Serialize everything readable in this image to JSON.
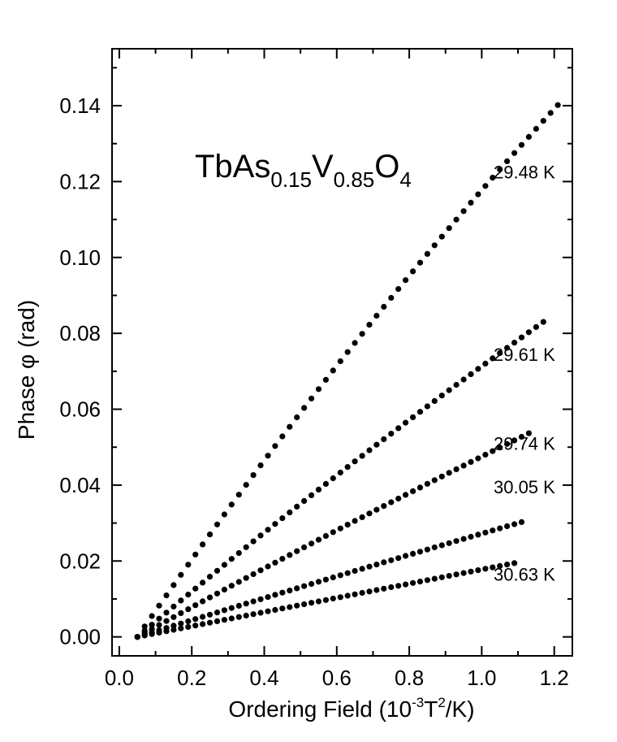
{
  "chart_data": {
    "type": "scatter",
    "title": {
      "main": "TbAs",
      "sub1": "0.15",
      "mid": "V",
      "sub2": "0.85",
      "end": "O",
      "sub3": "4"
    },
    "xlabel": {
      "before": "Ordering Field (10",
      "sup1": "-3",
      "mid": "T",
      "sup2": "2",
      "after": "/K)"
    },
    "ylabel": "Phase φ (rad)",
    "xlim": [
      -0.02,
      1.25
    ],
    "ylim": [
      -0.005,
      0.155
    ],
    "xticks": [
      0.0,
      0.2,
      0.4,
      0.6,
      0.8,
      1.0,
      1.2
    ],
    "xtick_labels": [
      "0.0",
      "0.2",
      "0.4",
      "0.6",
      "0.8",
      "1.0",
      "1.2"
    ],
    "yticks": [
      0.0,
      0.02,
      0.04,
      0.06,
      0.08,
      0.1,
      0.12,
      0.14
    ],
    "ytick_labels": [
      "0.00",
      "0.02",
      "0.04",
      "0.06",
      "0.08",
      "0.10",
      "0.12",
      "0.14"
    ],
    "marker_color": "#000000",
    "series": [
      {
        "name": "29.48 K",
        "x_start": 0.05,
        "x_end": 1.21,
        "step": 0.02,
        "a": 0.138,
        "b": -0.0148,
        "c": 0.0,
        "anchor": [
          1.225,
          0.1225
        ]
      },
      {
        "name": "29.61 K",
        "x_start": 0.05,
        "x_end": 1.17,
        "step": 0.02,
        "a": 0.0805,
        "b": -0.0057,
        "c": 0.0,
        "anchor": [
          1.225,
          0.0745
        ]
      },
      {
        "name": "29.74 K",
        "x_start": 0.05,
        "x_end": 1.14,
        "step": 0.02,
        "a": 0.0525,
        "b": -0.0026,
        "c": 0.0,
        "anchor": [
          1.225,
          0.051
        ]
      },
      {
        "name": "30.05 K",
        "x_start": 0.05,
        "x_end": 1.11,
        "step": 0.02,
        "a": 0.0295,
        "b": -0.0009,
        "c": 0.0,
        "anchor": [
          1.225,
          0.0395
        ]
      },
      {
        "name": "30.63 K",
        "x_start": 0.05,
        "x_end": 1.09,
        "step": 0.02,
        "a": 0.0187,
        "b": 0.0,
        "c": 0.0,
        "anchor": [
          1.225,
          0.0165
        ]
      }
    ]
  }
}
